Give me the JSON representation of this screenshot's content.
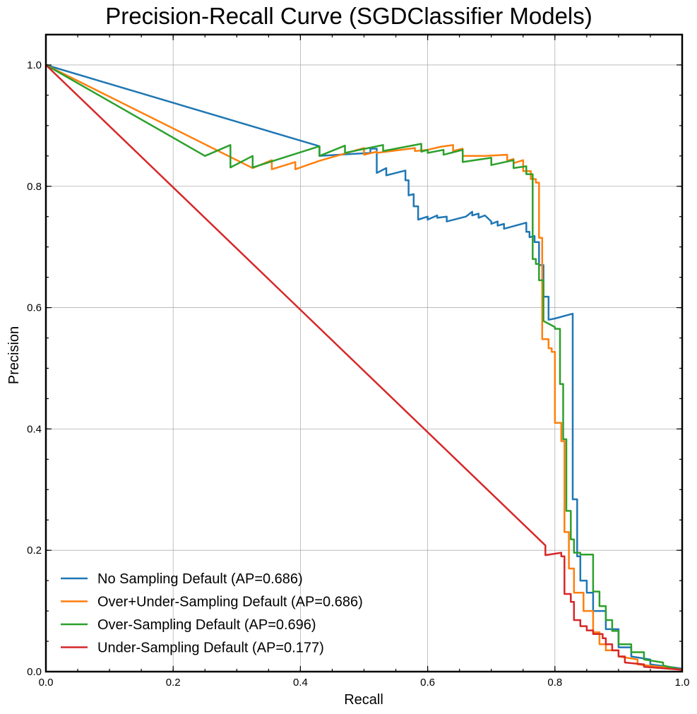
{
  "chart_data": {
    "type": "line",
    "title": "Precision-Recall Curve (SGDClassifier Models)",
    "xlabel": "Recall",
    "ylabel": "Precision",
    "xlim": [
      0.0,
      1.0
    ],
    "ylim": [
      0.0,
      1.05
    ],
    "x_ticks": [
      "0.0",
      "0.2",
      "0.4",
      "0.6",
      "0.8",
      "1.0"
    ],
    "y_ticks": [
      "0.0",
      "0.2",
      "0.4",
      "0.6",
      "0.8",
      "1.0"
    ],
    "grid": true,
    "legend_position": "lower-left",
    "series": [
      {
        "name": "No Sampling Default (AP=0.686)",
        "color": "#1f77b4",
        "step_points": [
          [
            0.0,
            1.0
          ],
          [
            0.43,
            0.866
          ],
          [
            0.43,
            0.85
          ],
          [
            0.51,
            0.855
          ],
          [
            0.51,
            0.862
          ],
          [
            0.52,
            0.862
          ],
          [
            0.52,
            0.822
          ],
          [
            0.535,
            0.83
          ],
          [
            0.535,
            0.818
          ],
          [
            0.565,
            0.826
          ],
          [
            0.565,
            0.81
          ],
          [
            0.57,
            0.81
          ],
          [
            0.57,
            0.785
          ],
          [
            0.578,
            0.787
          ],
          [
            0.578,
            0.767
          ],
          [
            0.585,
            0.767
          ],
          [
            0.585,
            0.745
          ],
          [
            0.6,
            0.75
          ],
          [
            0.6,
            0.745
          ],
          [
            0.615,
            0.752
          ],
          [
            0.615,
            0.748
          ],
          [
            0.63,
            0.75
          ],
          [
            0.63,
            0.742
          ],
          [
            0.66,
            0.75
          ],
          [
            0.67,
            0.758
          ],
          [
            0.67,
            0.752
          ],
          [
            0.68,
            0.755
          ],
          [
            0.68,
            0.748
          ],
          [
            0.69,
            0.752
          ],
          [
            0.7,
            0.742
          ],
          [
            0.7,
            0.738
          ],
          [
            0.71,
            0.742
          ],
          [
            0.71,
            0.735
          ],
          [
            0.72,
            0.738
          ],
          [
            0.72,
            0.73
          ],
          [
            0.755,
            0.74
          ],
          [
            0.755,
            0.725
          ],
          [
            0.76,
            0.725
          ],
          [
            0.76,
            0.716
          ],
          [
            0.768,
            0.718
          ],
          [
            0.768,
            0.708
          ],
          [
            0.775,
            0.708
          ],
          [
            0.775,
            0.67
          ],
          [
            0.782,
            0.67
          ],
          [
            0.782,
            0.618
          ],
          [
            0.79,
            0.618
          ],
          [
            0.79,
            0.58
          ],
          [
            0.8,
            0.582
          ],
          [
            0.828,
            0.59
          ],
          [
            0.828,
            0.284
          ],
          [
            0.835,
            0.284
          ],
          [
            0.835,
            0.19
          ],
          [
            0.84,
            0.19
          ],
          [
            0.84,
            0.15
          ],
          [
            0.85,
            0.15
          ],
          [
            0.85,
            0.13
          ],
          [
            0.86,
            0.13
          ],
          [
            0.86,
            0.1
          ],
          [
            0.88,
            0.1
          ],
          [
            0.88,
            0.07
          ],
          [
            0.9,
            0.07
          ],
          [
            0.9,
            0.04
          ],
          [
            0.92,
            0.04
          ],
          [
            0.92,
            0.025
          ],
          [
            0.95,
            0.02
          ],
          [
            0.95,
            0.012
          ],
          [
            1.0,
            0.005
          ]
        ]
      },
      {
        "name": "Over+Under-Sampling Default (AP=0.686)",
        "color": "#ff7f0e",
        "step_points": [
          [
            0.0,
            1.0
          ],
          [
            0.325,
            0.83
          ],
          [
            0.355,
            0.843
          ],
          [
            0.355,
            0.828
          ],
          [
            0.392,
            0.84
          ],
          [
            0.392,
            0.828
          ],
          [
            0.43,
            0.842
          ],
          [
            0.5,
            0.863
          ],
          [
            0.5,
            0.852
          ],
          [
            0.52,
            0.857
          ],
          [
            0.52,
            0.855
          ],
          [
            0.58,
            0.863
          ],
          [
            0.58,
            0.858
          ],
          [
            0.6,
            0.86
          ],
          [
            0.6,
            0.86
          ],
          [
            0.62,
            0.865
          ],
          [
            0.64,
            0.868
          ],
          [
            0.64,
            0.858
          ],
          [
            0.655,
            0.862
          ],
          [
            0.655,
            0.85
          ],
          [
            0.69,
            0.85
          ],
          [
            0.725,
            0.852
          ],
          [
            0.725,
            0.842
          ],
          [
            0.735,
            0.845
          ],
          [
            0.735,
            0.838
          ],
          [
            0.75,
            0.843
          ],
          [
            0.75,
            0.825
          ],
          [
            0.762,
            0.825
          ],
          [
            0.762,
            0.812
          ],
          [
            0.77,
            0.812
          ],
          [
            0.77,
            0.806
          ],
          [
            0.775,
            0.806
          ],
          [
            0.775,
            0.715
          ],
          [
            0.78,
            0.715
          ],
          [
            0.78,
            0.548
          ],
          [
            0.79,
            0.548
          ],
          [
            0.79,
            0.533
          ],
          [
            0.795,
            0.533
          ],
          [
            0.795,
            0.527
          ],
          [
            0.8,
            0.527
          ],
          [
            0.8,
            0.41
          ],
          [
            0.81,
            0.41
          ],
          [
            0.81,
            0.38
          ],
          [
            0.815,
            0.38
          ],
          [
            0.815,
            0.23
          ],
          [
            0.822,
            0.23
          ],
          [
            0.822,
            0.17
          ],
          [
            0.83,
            0.17
          ],
          [
            0.83,
            0.13
          ],
          [
            0.845,
            0.13
          ],
          [
            0.845,
            0.1
          ],
          [
            0.86,
            0.1
          ],
          [
            0.86,
            0.065
          ],
          [
            0.87,
            0.065
          ],
          [
            0.87,
            0.045
          ],
          [
            0.88,
            0.045
          ],
          [
            0.88,
            0.035
          ],
          [
            0.9,
            0.035
          ],
          [
            0.9,
            0.025
          ],
          [
            0.93,
            0.02
          ],
          [
            0.93,
            0.012
          ],
          [
            1.0,
            0.004
          ]
        ]
      },
      {
        "name": "Over-Sampling Default (AP=0.696)",
        "color": "#2ca02c",
        "step_points": [
          [
            0.0,
            1.0
          ],
          [
            0.25,
            0.85
          ],
          [
            0.29,
            0.868
          ],
          [
            0.29,
            0.831
          ],
          [
            0.325,
            0.85
          ],
          [
            0.325,
            0.831
          ],
          [
            0.43,
            0.866
          ],
          [
            0.43,
            0.85
          ],
          [
            0.47,
            0.867
          ],
          [
            0.47,
            0.855
          ],
          [
            0.53,
            0.868
          ],
          [
            0.53,
            0.858
          ],
          [
            0.59,
            0.87
          ],
          [
            0.59,
            0.857
          ],
          [
            0.6,
            0.86
          ],
          [
            0.6,
            0.855
          ],
          [
            0.625,
            0.86
          ],
          [
            0.625,
            0.852
          ],
          [
            0.655,
            0.86
          ],
          [
            0.655,
            0.84
          ],
          [
            0.7,
            0.847
          ],
          [
            0.7,
            0.835
          ],
          [
            0.735,
            0.843
          ],
          [
            0.735,
            0.83
          ],
          [
            0.755,
            0.833
          ],
          [
            0.755,
            0.82
          ],
          [
            0.765,
            0.82
          ],
          [
            0.765,
            0.68
          ],
          [
            0.77,
            0.68
          ],
          [
            0.77,
            0.672
          ],
          [
            0.775,
            0.672
          ],
          [
            0.775,
            0.645
          ],
          [
            0.782,
            0.645
          ],
          [
            0.782,
            0.578
          ],
          [
            0.8,
            0.568
          ],
          [
            0.8,
            0.565
          ],
          [
            0.808,
            0.565
          ],
          [
            0.808,
            0.474
          ],
          [
            0.813,
            0.474
          ],
          [
            0.813,
            0.383
          ],
          [
            0.818,
            0.383
          ],
          [
            0.818,
            0.265
          ],
          [
            0.825,
            0.265
          ],
          [
            0.825,
            0.218
          ],
          [
            0.83,
            0.218
          ],
          [
            0.83,
            0.196
          ],
          [
            0.84,
            0.196
          ],
          [
            0.84,
            0.193
          ],
          [
            0.86,
            0.193
          ],
          [
            0.86,
            0.132
          ],
          [
            0.87,
            0.132
          ],
          [
            0.87,
            0.108
          ],
          [
            0.88,
            0.108
          ],
          [
            0.88,
            0.085
          ],
          [
            0.89,
            0.085
          ],
          [
            0.89,
            0.067
          ],
          [
            0.9,
            0.067
          ],
          [
            0.9,
            0.045
          ],
          [
            0.92,
            0.045
          ],
          [
            0.92,
            0.032
          ],
          [
            0.94,
            0.032
          ],
          [
            0.94,
            0.02
          ],
          [
            0.97,
            0.015
          ],
          [
            0.97,
            0.01
          ],
          [
            1.0,
            0.003
          ]
        ]
      },
      {
        "name": "Under-Sampling Default (AP=0.177)",
        "color": "#d62728",
        "step_points": [
          [
            0.0,
            1.0
          ],
          [
            0.785,
            0.208
          ],
          [
            0.785,
            0.192
          ],
          [
            0.81,
            0.196
          ],
          [
            0.81,
            0.19
          ],
          [
            0.815,
            0.19
          ],
          [
            0.815,
            0.128
          ],
          [
            0.825,
            0.128
          ],
          [
            0.825,
            0.115
          ],
          [
            0.83,
            0.115
          ],
          [
            0.83,
            0.085
          ],
          [
            0.84,
            0.085
          ],
          [
            0.84,
            0.075
          ],
          [
            0.85,
            0.075
          ],
          [
            0.85,
            0.068
          ],
          [
            0.86,
            0.068
          ],
          [
            0.86,
            0.062
          ],
          [
            0.875,
            0.062
          ],
          [
            0.875,
            0.055
          ],
          [
            0.88,
            0.055
          ],
          [
            0.88,
            0.045
          ],
          [
            0.89,
            0.045
          ],
          [
            0.89,
            0.035
          ],
          [
            0.9,
            0.035
          ],
          [
            0.9,
            0.025
          ],
          [
            0.91,
            0.025
          ],
          [
            0.91,
            0.015
          ],
          [
            0.94,
            0.012
          ],
          [
            0.94,
            0.008
          ],
          [
            1.0,
            0.003
          ]
        ]
      }
    ]
  }
}
